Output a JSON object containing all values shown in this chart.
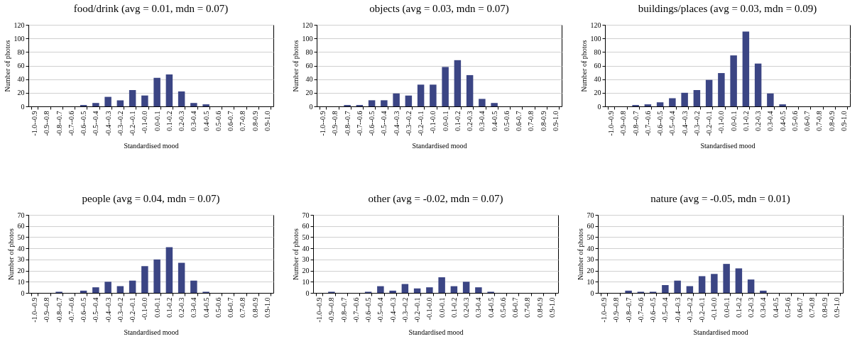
{
  "chart_data": [
    {
      "type": "bar",
      "title": "food/drink (avg = 0.01, mdn = 0.07)",
      "xlabel": "Standardised mood",
      "ylabel": "Number of photos",
      "categories": [
        "-1.0--0.9",
        "-0.9--0.8",
        "-0.8--0.7",
        "-0.7--0.6",
        "-0.6--0.5",
        "-0.5--0.4",
        "-0.4--0.3",
        "-0.3--0.2",
        "-0.2--0.1",
        "-0.1-0.0",
        "0.0-0.1",
        "0.1-0.2",
        "0.2-0.3",
        "0.3-0.4",
        "0.4-0.5",
        "0.5-0.6",
        "0.6-0.7",
        "0.7-0.8",
        "0.8-0.9",
        "0.9-1.0"
      ],
      "values": [
        0,
        0,
        0,
        0,
        2,
        5,
        14,
        9,
        24,
        16,
        42,
        47,
        22,
        5,
        3,
        0,
        0,
        0,
        0,
        0
      ],
      "color": "#3b4584",
      "ylim": [
        0,
        120
      ],
      "yticks": [
        0,
        20,
        40,
        60,
        80,
        100,
        120
      ],
      "grid": "y"
    },
    {
      "type": "bar",
      "title": "objects (avg = 0.03, mdn = 0.07)",
      "xlabel": "Standardised mood",
      "ylabel": "Number of photos",
      "categories": [
        "-1.0--0.9",
        "-0.9--0.8",
        "-0.8--0.7",
        "-0.7--0.6",
        "-0.6--0.5",
        "-0.5--0.4",
        "-0.4--0.3",
        "-0.3--0.2",
        "-0.2--0.1",
        "-0.1-0.0",
        "0.0-0.1",
        "0.1-0.2",
        "0.2-0.3",
        "0.3-0.4",
        "0.4-0.5",
        "0.5-0.6",
        "0.6-0.7",
        "0.7-0.8",
        "0.8-0.9",
        "0.9-1.0"
      ],
      "values": [
        0,
        0,
        2,
        2,
        9,
        9,
        19,
        16,
        32,
        32,
        58,
        68,
        46,
        11,
        5,
        0,
        0,
        0,
        0,
        0
      ],
      "color": "#3b4584",
      "ylim": [
        0,
        120
      ],
      "yticks": [
        0,
        20,
        40,
        60,
        80,
        100,
        120
      ],
      "grid": "y"
    },
    {
      "type": "bar",
      "title": "buildings/places (avg = 0.03, mdn = 0.09)",
      "xlabel": "Standardised mood",
      "ylabel": "Number of photos",
      "categories": [
        "-1.0--0.9",
        "-0.9--0.8",
        "-0.8--0.7",
        "-0.7--0.6",
        "-0.6--0.5",
        "-0.5--0.4",
        "-0.4--0.3",
        "-0.3--0.2",
        "-0.2--0.1",
        "-0.1-0.0",
        "0.0-0.1",
        "0.1-0.2",
        "0.2-0.3",
        "0.3-0.4",
        "0.4-0.5",
        "0.5-0.6",
        "0.6-0.7",
        "0.7-0.8",
        "0.8-0.9",
        "0.9-1.0"
      ],
      "values": [
        0,
        0,
        2,
        3,
        6,
        12,
        20,
        24,
        39,
        49,
        75,
        110,
        63,
        19,
        3,
        0,
        0,
        0,
        0,
        0
      ],
      "color": "#3b4584",
      "ylim": [
        0,
        120
      ],
      "yticks": [
        0,
        20,
        40,
        60,
        80,
        100,
        120
      ],
      "grid": "y"
    },
    {
      "type": "bar",
      "title": "people (avg = 0.04, mdn = 0.07)",
      "xlabel": "Standardised mood",
      "ylabel": "Number of photos",
      "categories": [
        "-1.0--0.9",
        "-0.9--0.8",
        "-0.8--0.7",
        "-0.7--0.6",
        "-0.6--0.5",
        "-0.5--0.4",
        "-0.4--0.3",
        "-0.3--0.2",
        "-0.2--0.1",
        "-0.1-0.0",
        "0.0-0.1",
        "0.1-0.2",
        "0.2-0.3",
        "0.3-0.4",
        "0.4-0.5",
        "0.5-0.6",
        "0.6-0.7",
        "0.7-0.8",
        "0.8-0.9",
        "0.9-1.0"
      ],
      "values": [
        0,
        0,
        1,
        0,
        2,
        5,
        10,
        6,
        11,
        24,
        30,
        41,
        27,
        11,
        1,
        0,
        0,
        0,
        0,
        0
      ],
      "color": "#3b4584",
      "ylim": [
        0,
        70
      ],
      "yticks": [
        0,
        10,
        20,
        30,
        40,
        50,
        60,
        70
      ],
      "grid": "y"
    },
    {
      "type": "bar",
      "title": "other (avg = -0.02, mdn = 0.07)",
      "xlabel": "Standardised mood",
      "ylabel": "Number of photos",
      "categories": [
        "-1.0--0.9",
        "-0.9--0.8",
        "-0.8--0.7",
        "-0.7--0.6",
        "-0.6--0.5",
        "-0.5--0.4",
        "-0.4--0.3",
        "-0.3--0.2",
        "-0.2--0.1",
        "-0.1-0.0",
        "0.0-0.1",
        "0.1-0.2",
        "0.2-0.3",
        "0.3-0.4",
        "0.4-0.5",
        "0.5-0.6",
        "0.6-0.7",
        "0.7-0.8",
        "0.8-0.9",
        "0.9-1.0"
      ],
      "values": [
        0,
        1,
        0,
        0,
        1,
        6,
        2,
        8,
        4,
        5,
        14,
        6,
        10,
        5,
        1,
        0,
        0,
        0,
        0,
        0
      ],
      "color": "#3b4584",
      "ylim": [
        0,
        70
      ],
      "yticks": [
        0,
        10,
        20,
        30,
        40,
        50,
        60,
        70
      ],
      "grid": "y"
    },
    {
      "type": "bar",
      "title": "nature (avg = -0.05, mdn = 0.01)",
      "xlabel": "Standardised mood",
      "ylabel": "Number of photos",
      "categories": [
        "-1.0--0.9",
        "-0.9--0.8",
        "-0.8--0.7",
        "-0.7--0.6",
        "-0.6--0.5",
        "-0.5--0.4",
        "-0.4--0.3",
        "-0.3--0.2",
        "-0.2--0.1",
        "-0.1-0.0",
        "0.0-0.1",
        "0.1-0.2",
        "0.2-0.3",
        "0.3-0.4",
        "0.4-0.5",
        "0.5-0.6",
        "0.6-0.7",
        "0.7-0.8",
        "0.8-0.9",
        "0.9-1.0"
      ],
      "values": [
        0,
        0,
        2,
        1,
        1,
        7,
        11,
        6,
        15,
        17,
        26,
        22,
        12,
        2,
        0,
        0,
        0,
        0,
        0,
        0
      ],
      "color": "#3b4584",
      "ylim": [
        0,
        70
      ],
      "yticks": [
        0,
        10,
        20,
        30,
        40,
        50,
        60,
        70
      ],
      "grid": "y"
    }
  ]
}
